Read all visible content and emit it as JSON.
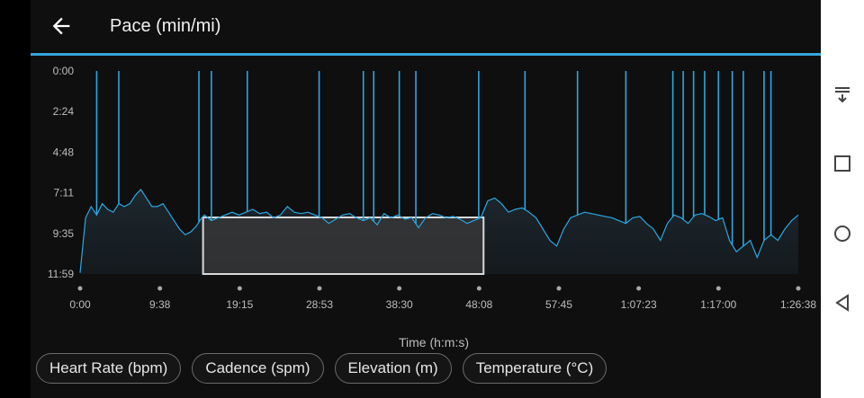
{
  "header": {
    "title": "Pace (min/mi)",
    "back_icon": "arrow-left-icon"
  },
  "colors": {
    "accent": "#33a5dc",
    "background": "#0f0f0f",
    "line": "#2aa7e3"
  },
  "chart_data": {
    "type": "line",
    "title": "",
    "xlabel": "Time (h:m:s)",
    "ylabel": "",
    "y_inverted": true,
    "y_ticks": [
      "0:00",
      "2:24",
      "4:48",
      "7:11",
      "9:35",
      "11:59"
    ],
    "x_ticks": [
      "0:00",
      "9:38",
      "19:15",
      "28:53",
      "38:30",
      "48:08",
      "57:45",
      "1:07:23",
      "1:17:00",
      "1:26:38"
    ],
    "ylim_sec": [
      0,
      719
    ],
    "xlim_sec": [
      0,
      5198
    ],
    "selection": {
      "start_sec": 890,
      "end_sec": 2920
    },
    "series": [
      {
        "values": [
          [
            0,
            715
          ],
          [
            40,
            520
          ],
          [
            80,
            480
          ],
          [
            120,
            510
          ],
          [
            160,
            470
          ],
          [
            200,
            490
          ],
          [
            240,
            500
          ],
          [
            280,
            470
          ],
          [
            320,
            480
          ],
          [
            360,
            470
          ],
          [
            400,
            440
          ],
          [
            440,
            420
          ],
          [
            480,
            450
          ],
          [
            520,
            480
          ],
          [
            560,
            480
          ],
          [
            600,
            470
          ],
          [
            640,
            500
          ],
          [
            680,
            530
          ],
          [
            720,
            560
          ],
          [
            760,
            580
          ],
          [
            800,
            570
          ],
          [
            840,
            550
          ],
          [
            880,
            520
          ],
          [
            900,
            510
          ],
          [
            950,
            530
          ],
          [
            1000,
            520
          ],
          [
            1050,
            510
          ],
          [
            1100,
            500
          ],
          [
            1150,
            510
          ],
          [
            1200,
            500
          ],
          [
            1250,
            490
          ],
          [
            1300,
            505
          ],
          [
            1350,
            500
          ],
          [
            1400,
            520
          ],
          [
            1450,
            510
          ],
          [
            1500,
            480
          ],
          [
            1550,
            500
          ],
          [
            1600,
            505
          ],
          [
            1650,
            500
          ],
          [
            1700,
            510
          ],
          [
            1750,
            520
          ],
          [
            1800,
            540
          ],
          [
            1850,
            525
          ],
          [
            1900,
            510
          ],
          [
            1950,
            505
          ],
          [
            2000,
            520
          ],
          [
            2050,
            530
          ],
          [
            2100,
            520
          ],
          [
            2150,
            545
          ],
          [
            2200,
            505
          ],
          [
            2250,
            520
          ],
          [
            2300,
            510
          ],
          [
            2350,
            525
          ],
          [
            2400,
            520
          ],
          [
            2450,
            555
          ],
          [
            2500,
            520
          ],
          [
            2550,
            505
          ],
          [
            2600,
            510
          ],
          [
            2650,
            520
          ],
          [
            2700,
            515
          ],
          [
            2750,
            525
          ],
          [
            2800,
            540
          ],
          [
            2850,
            530
          ],
          [
            2900,
            520
          ],
          [
            2950,
            460
          ],
          [
            3000,
            450
          ],
          [
            3050,
            470
          ],
          [
            3100,
            500
          ],
          [
            3150,
            490
          ],
          [
            3200,
            485
          ],
          [
            3250,
            500
          ],
          [
            3300,
            520
          ],
          [
            3350,
            560
          ],
          [
            3400,
            600
          ],
          [
            3450,
            620
          ],
          [
            3500,
            560
          ],
          [
            3550,
            520
          ],
          [
            3600,
            510
          ],
          [
            3650,
            500
          ],
          [
            3700,
            505
          ],
          [
            3750,
            510
          ],
          [
            3800,
            515
          ],
          [
            3850,
            520
          ],
          [
            3900,
            530
          ],
          [
            3950,
            540
          ],
          [
            4000,
            520
          ],
          [
            4050,
            515
          ],
          [
            4100,
            540
          ],
          [
            4150,
            560
          ],
          [
            4200,
            600
          ],
          [
            4250,
            540
          ],
          [
            4300,
            510
          ],
          [
            4350,
            520
          ],
          [
            4400,
            540
          ],
          [
            4450,
            510
          ],
          [
            4500,
            505
          ],
          [
            4550,
            515
          ],
          [
            4600,
            530
          ],
          [
            4650,
            520
          ],
          [
            4700,
            600
          ],
          [
            4750,
            640
          ],
          [
            4800,
            620
          ],
          [
            4850,
            600
          ],
          [
            4900,
            660
          ],
          [
            4950,
            600
          ],
          [
            5000,
            580
          ],
          [
            5050,
            600
          ],
          [
            5100,
            560
          ],
          [
            5150,
            530
          ],
          [
            5198,
            510
          ]
        ],
        "spikes_sec": [
          120,
          280,
          860,
          950,
          1210,
          1730,
          2050,
          2125,
          2310,
          2430,
          2885,
          3220,
          3600,
          3950,
          4290,
          4365,
          4440,
          4520,
          4620,
          4720,
          4800,
          4950,
          5000
        ]
      }
    ]
  },
  "metric_buttons": [
    {
      "label": "Heart Rate (bpm)"
    },
    {
      "label": "Cadence (spm)"
    },
    {
      "label": "Elevation (m)"
    },
    {
      "label": "Temperature (°C)"
    }
  ],
  "nav": {
    "icons": [
      "collapse-down-icon",
      "recents-square-icon",
      "home-circle-icon",
      "back-triangle-icon"
    ]
  }
}
